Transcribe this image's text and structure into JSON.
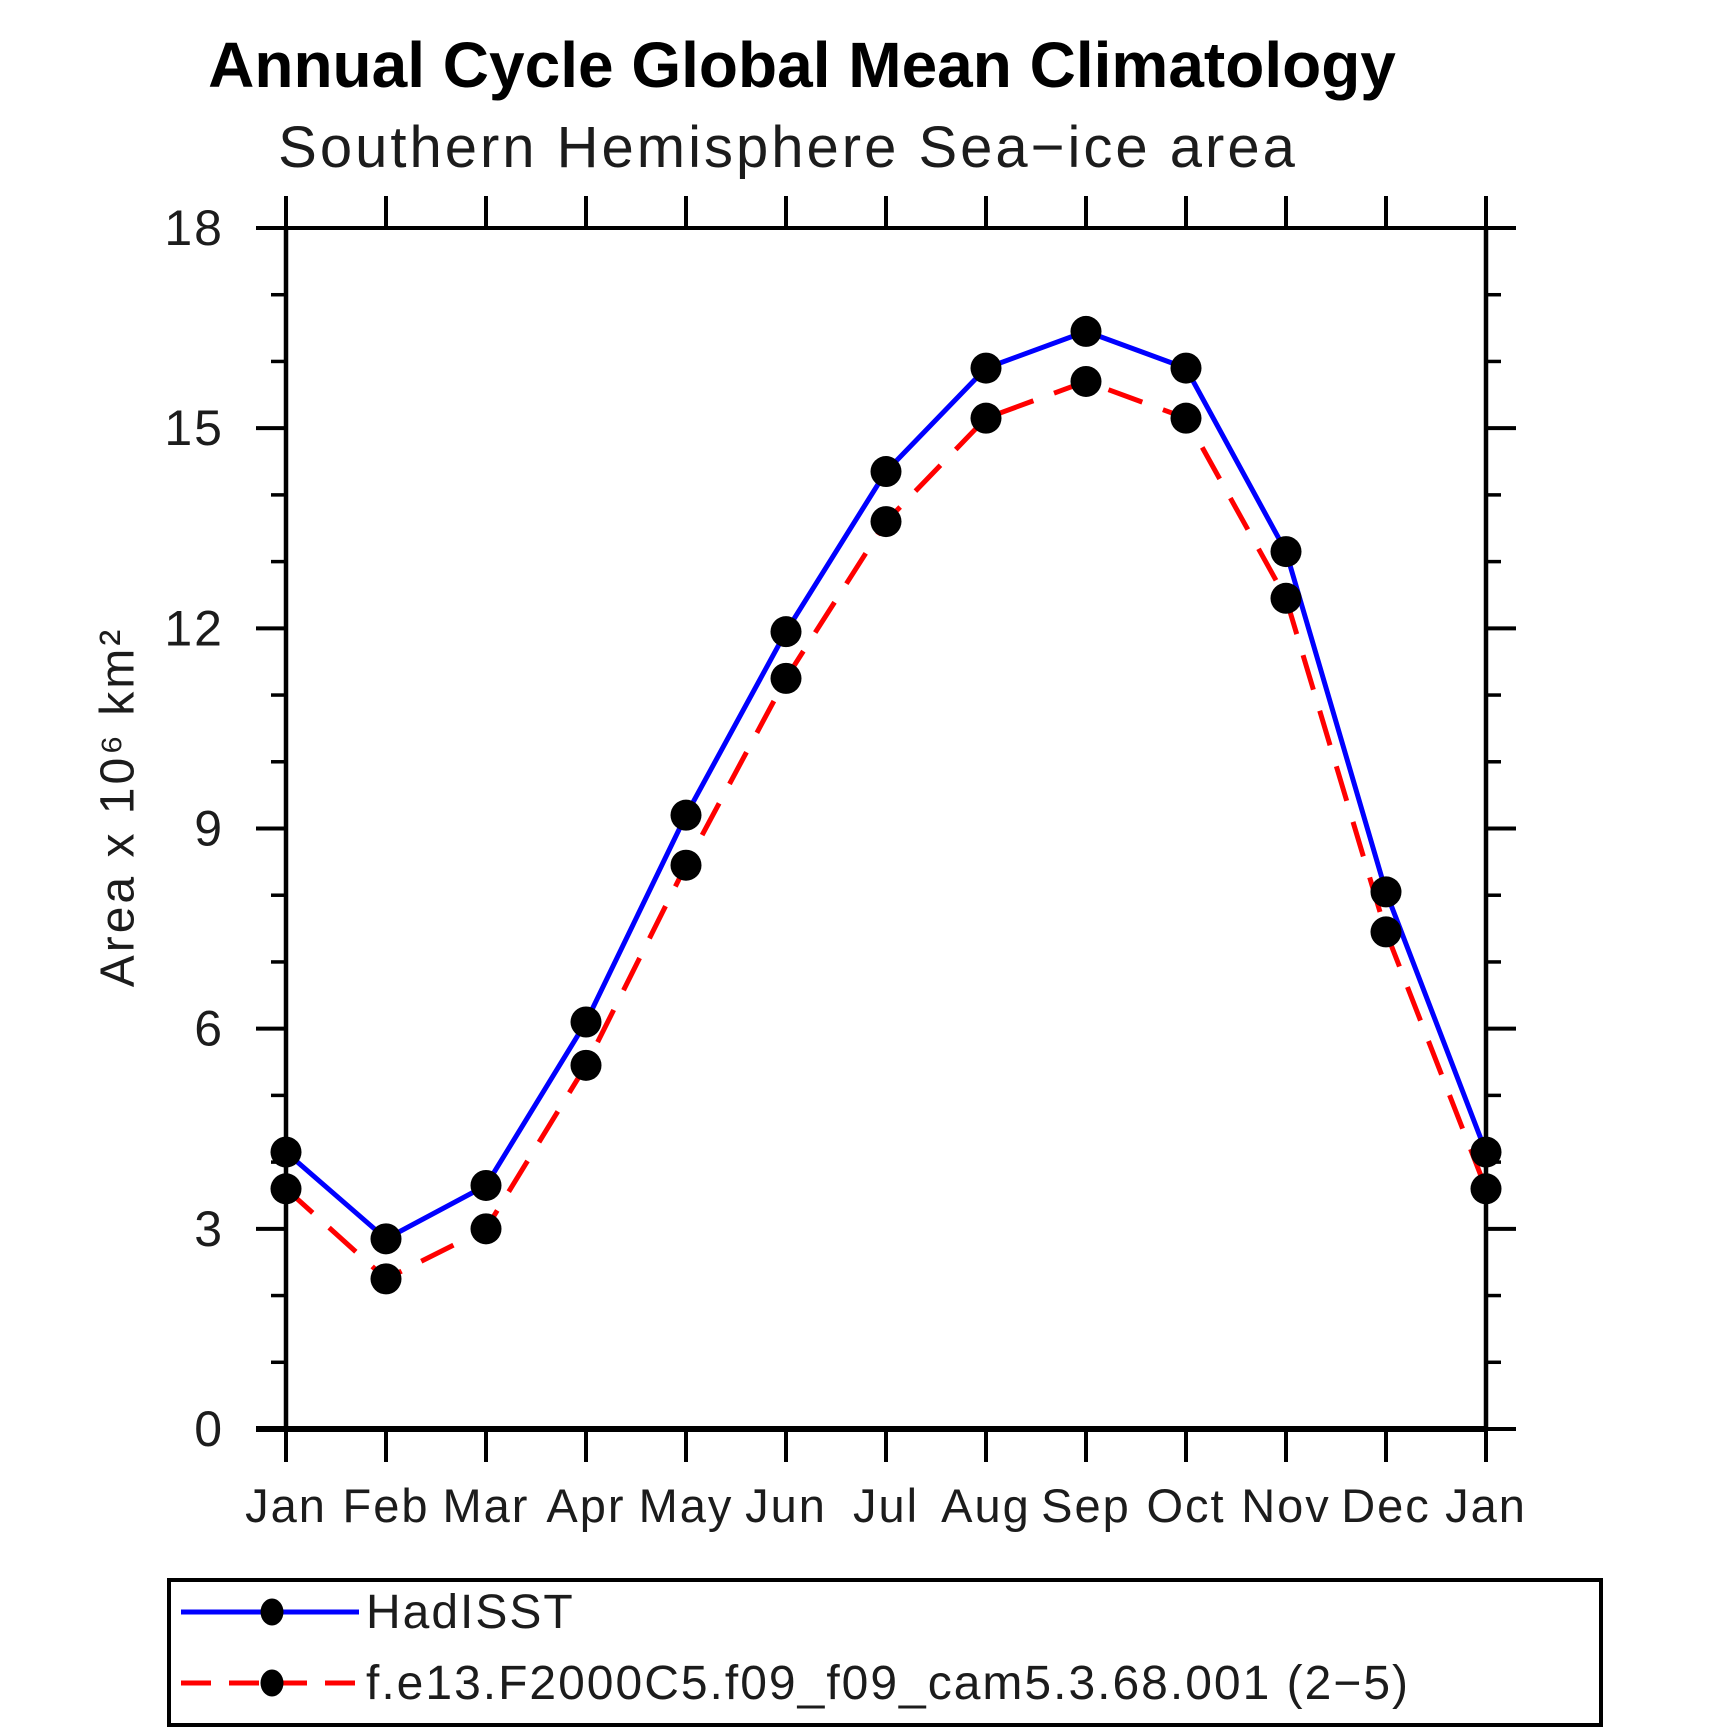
{
  "title": "Annual Cycle Global Mean Climatology",
  "subtitle": "Southern Hemisphere Sea−ice area",
  "chart_data": {
    "type": "line",
    "title": "Annual Cycle Global Mean Climatology",
    "subtitle": "Southern Hemisphere Sea−ice area",
    "xlabel": "",
    "ylabel": "Area x 10⁶ km²",
    "categories": [
      "Jan",
      "Feb",
      "Mar",
      "Apr",
      "May",
      "Jun",
      "Jul",
      "Aug",
      "Sep",
      "Oct",
      "Nov",
      "Dec",
      "Jan"
    ],
    "ylim": [
      0,
      18
    ],
    "yticks": [
      0,
      3,
      6,
      9,
      12,
      15,
      18
    ],
    "y_minor_step": 1,
    "grid": false,
    "legend_position": "bottom",
    "frame_color": "#000000",
    "marker_color": "#000000",
    "series": [
      {
        "name": "HadISST",
        "color": "#0000ff",
        "style": "solid",
        "values": [
          4.15,
          2.85,
          3.65,
          6.1,
          9.2,
          11.95,
          14.35,
          15.9,
          16.45,
          15.9,
          13.15,
          8.05,
          4.15
        ]
      },
      {
        "name": "f.e13.F2000C5.f09_f09_cam5.3.68.001 (2−5)",
        "color": "#ff0000",
        "style": "dashed",
        "values": [
          3.6,
          2.25,
          3.0,
          5.45,
          8.45,
          11.25,
          13.6,
          15.15,
          15.7,
          15.15,
          12.45,
          7.45,
          3.6
        ]
      }
    ]
  }
}
